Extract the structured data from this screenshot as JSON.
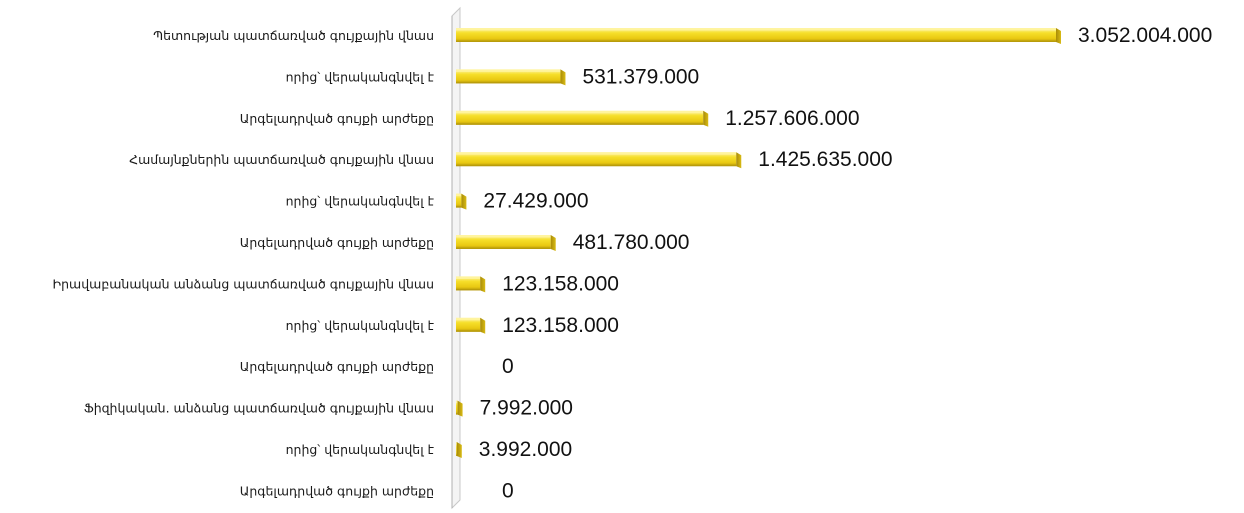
{
  "chart_data": {
    "type": "bar",
    "orientation": "horizontal",
    "categories": [
      "Պետության պատճառված գույքային  վնաս",
      "որից՝  վերականգնվել է",
      "Արգելադրված գույքի արժեքը",
      "Համայնքներին պատճառված գույքային վնաս",
      "որից՝  վերականգնվել է",
      "Արգելադրված գույքի արժեքը",
      "Իրավաբանական անձանց  պատճառված գույքային վնաս",
      "որից՝  վերականգնվել է",
      "Արգելադրված գույքի արժեքը",
      "Ֆիզիկական. անձանց պատճառված գույքային վնաս",
      "որից՝  վերականգնվել է",
      "Արգելադրված գույքի արժեքը"
    ],
    "values": [
      3052004000,
      531379000,
      1257606000,
      1425635000,
      27429000,
      481780000,
      123158000,
      123158000,
      0,
      7992000,
      3992000,
      0
    ],
    "value_labels": [
      "3.052.004.000",
      "531.379.000",
      "1.257.606.000",
      "1.425.635.000",
      "27.429.000",
      "481.780.000",
      "123.158.000",
      "123.158.000",
      "0",
      "7.992.000",
      "3.992.000",
      "0"
    ],
    "title": "",
    "xlabel": "",
    "ylabel": "",
    "grid": false,
    "legend": "none",
    "bar_color": "#f2d81c",
    "bar_highlight": "#fff4a0",
    "bar_shadow": "#b59a0c"
  }
}
